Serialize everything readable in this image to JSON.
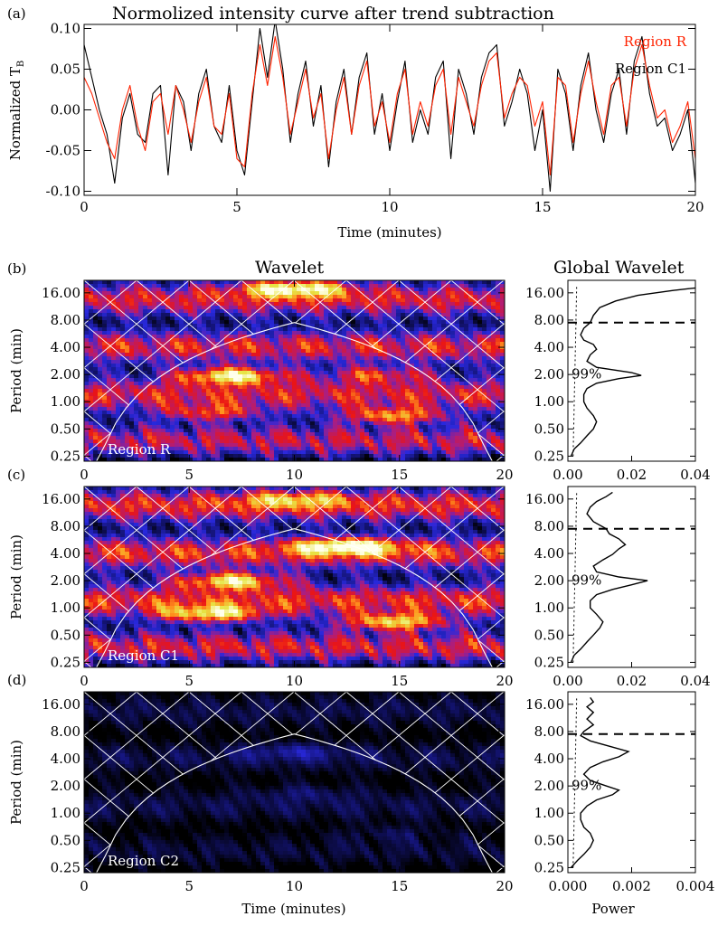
{
  "figure": {
    "panel_a_label": "(a)",
    "panel_b_label": "(b)",
    "panel_c_label": "(c)",
    "panel_d_label": "(d)",
    "panel_a_title": "Normolized intensity curve after trend subtraction",
    "wavelet_title": "Wavelet",
    "global_title": "Global Wavelet",
    "bottom_xlabel": "Time (minutes)",
    "global_xlabel": "Power",
    "sig_level": "99%"
  },
  "chart_data": [
    {
      "type": "line",
      "panel": "a",
      "title": "Normolized intensity curve after trend subtraction",
      "xlabel": "Time (minutes)",
      "ylabel": "Normalized T",
      "ylabel_sub": "B",
      "xlim": [
        0,
        20
      ],
      "ylim": [
        -0.105,
        0.105
      ],
      "xticks": [
        "0",
        "5",
        "10",
        "15",
        "20"
      ],
      "yticks": [
        "-0.10",
        "-0.05",
        "0.00",
        "0.05",
        "0.10"
      ],
      "legend_position": "top-right",
      "series": [
        {
          "name": "Region R",
          "color": "#ff2200",
          "x": [
            0.0,
            0.25,
            0.5,
            0.75,
            1.0,
            1.25,
            1.5,
            1.75,
            2.0,
            2.25,
            2.5,
            2.75,
            3.0,
            3.25,
            3.5,
            3.75,
            4.0,
            4.25,
            4.5,
            4.75,
            5.0,
            5.25,
            5.5,
            5.75,
            6.0,
            6.25,
            6.5,
            6.75,
            7.0,
            7.25,
            7.5,
            7.75,
            8.0,
            8.25,
            8.5,
            8.75,
            9.0,
            9.25,
            9.5,
            9.75,
            10.0,
            10.25,
            10.5,
            10.75,
            11.0,
            11.25,
            11.5,
            11.75,
            12.0,
            12.25,
            12.5,
            12.75,
            13.0,
            13.25,
            13.5,
            13.75,
            14.0,
            14.25,
            14.5,
            14.75,
            15.0,
            15.25,
            15.5,
            15.75,
            16.0,
            16.25,
            16.5,
            16.75,
            17.0,
            17.25,
            17.5,
            17.75,
            18.0,
            18.25,
            18.5,
            18.75,
            19.0,
            19.25,
            19.5,
            19.75,
            20.0
          ],
          "y": [
            0.04,
            0.02,
            -0.01,
            -0.04,
            -0.06,
            0.0,
            0.03,
            -0.02,
            -0.05,
            0.01,
            0.02,
            -0.03,
            0.03,
            0.0,
            -0.04,
            0.01,
            0.04,
            -0.02,
            -0.03,
            0.02,
            -0.06,
            -0.07,
            0.02,
            0.08,
            0.03,
            0.09,
            0.04,
            -0.03,
            0.01,
            0.05,
            -0.01,
            0.02,
            -0.06,
            0.0,
            0.04,
            -0.03,
            0.03,
            0.06,
            -0.02,
            0.01,
            -0.04,
            0.02,
            0.05,
            -0.03,
            0.01,
            -0.02,
            0.03,
            0.05,
            -0.03,
            0.04,
            0.01,
            -0.02,
            0.03,
            0.06,
            0.07,
            -0.01,
            0.02,
            0.04,
            0.03,
            -0.02,
            0.01,
            -0.08,
            0.04,
            0.03,
            -0.04,
            0.02,
            0.06,
            0.01,
            -0.03,
            0.03,
            0.04,
            -0.02,
            0.05,
            0.08,
            0.03,
            -0.01,
            0.0,
            -0.04,
            -0.02,
            0.01,
            -0.06
          ]
        },
        {
          "name": "Region C1",
          "color": "#000000",
          "x": [
            0.0,
            0.25,
            0.5,
            0.75,
            1.0,
            1.25,
            1.5,
            1.75,
            2.0,
            2.25,
            2.5,
            2.75,
            3.0,
            3.25,
            3.5,
            3.75,
            4.0,
            4.25,
            4.5,
            4.75,
            5.0,
            5.25,
            5.5,
            5.75,
            6.0,
            6.25,
            6.5,
            6.75,
            7.0,
            7.25,
            7.5,
            7.75,
            8.0,
            8.25,
            8.5,
            8.75,
            9.0,
            9.25,
            9.5,
            9.75,
            10.0,
            10.25,
            10.5,
            10.75,
            11.0,
            11.25,
            11.5,
            11.75,
            12.0,
            12.25,
            12.5,
            12.75,
            13.0,
            13.25,
            13.5,
            13.75,
            14.0,
            14.25,
            14.5,
            14.75,
            15.0,
            15.25,
            15.5,
            15.75,
            16.0,
            16.25,
            16.5,
            16.75,
            17.0,
            17.25,
            17.5,
            17.75,
            18.0,
            18.25,
            18.5,
            18.75,
            19.0,
            19.25,
            19.5,
            19.75,
            20.0
          ],
          "y": [
            0.08,
            0.04,
            0.0,
            -0.03,
            -0.09,
            -0.01,
            0.02,
            -0.03,
            -0.04,
            0.02,
            0.03,
            -0.08,
            0.03,
            0.01,
            -0.05,
            0.02,
            0.05,
            -0.02,
            -0.04,
            0.03,
            -0.05,
            -0.08,
            0.01,
            0.1,
            0.04,
            0.11,
            0.05,
            -0.04,
            0.02,
            0.06,
            -0.02,
            0.03,
            -0.07,
            0.01,
            0.05,
            -0.03,
            0.04,
            0.07,
            -0.03,
            0.02,
            -0.05,
            0.01,
            0.06,
            -0.04,
            0.0,
            -0.03,
            0.04,
            0.06,
            -0.06,
            0.05,
            0.02,
            -0.03,
            0.04,
            0.07,
            0.08,
            -0.02,
            0.01,
            0.05,
            0.02,
            -0.05,
            0.0,
            -0.1,
            0.05,
            0.02,
            -0.05,
            0.03,
            0.07,
            0.0,
            -0.04,
            0.02,
            0.05,
            -0.03,
            0.06,
            0.09,
            0.02,
            -0.02,
            -0.01,
            -0.05,
            -0.03,
            0.0,
            -0.09
          ]
        }
      ]
    },
    {
      "type": "heatmap",
      "panel": "b",
      "title": "Wavelet",
      "xlabel": "",
      "ylabel": "Period (min)",
      "xlim": [
        0,
        20
      ],
      "xticks": [
        "0",
        "5",
        "10",
        "15",
        "20"
      ],
      "yticks": [
        "16.00",
        "8.00",
        "4.00",
        "2.00",
        "1.00",
        "0.50",
        "0.25"
      ],
      "annotation": "Region R",
      "cone_peak_period": 7.5,
      "hot_spots": [
        {
          "t": 7.0,
          "period": 1.95,
          "strength": 1.0
        },
        {
          "t": 14.0,
          "period": 2.0,
          "strength": 0.55
        },
        {
          "t": 6.0,
          "period": 0.75,
          "strength": 0.55
        },
        {
          "t": 14.7,
          "period": 0.7,
          "strength": 0.75
        },
        {
          "t": 10.0,
          "period": 18.0,
          "strength": 0.9
        }
      ]
    },
    {
      "type": "line",
      "panel": "b",
      "title": "Global Wavelet",
      "xlabel": "",
      "ylabel": "",
      "xlim": [
        0,
        0.04
      ],
      "xticks": [
        "0.00",
        "0.02",
        "0.04"
      ],
      "yticks": [
        "16.00",
        "8.00",
        "4.00",
        "2.00",
        "1.00",
        "0.50",
        "0.25"
      ],
      "period": [
        0.25,
        0.3,
        0.35,
        0.42,
        0.5,
        0.6,
        0.7,
        0.85,
        1.0,
        1.2,
        1.4,
        1.6,
        1.8,
        1.95,
        2.1,
        2.4,
        2.8,
        3.3,
        3.8,
        4.3,
        4.8,
        5.5,
        6.5,
        7.5,
        9.0,
        11.0,
        13.0,
        15.0,
        17.0,
        19.0
      ],
      "power": [
        0.001,
        0.002,
        0.004,
        0.006,
        0.008,
        0.009,
        0.008,
        0.006,
        0.005,
        0.005,
        0.006,
        0.009,
        0.016,
        0.023,
        0.02,
        0.009,
        0.006,
        0.007,
        0.009,
        0.008,
        0.005,
        0.004,
        0.005,
        0.007,
        0.008,
        0.01,
        0.015,
        0.022,
        0.033,
        0.045
      ],
      "significance_label": "99%"
    },
    {
      "type": "heatmap",
      "panel": "c",
      "title": "",
      "xlabel": "",
      "ylabel": "Period (min)",
      "xlim": [
        0,
        20
      ],
      "xticks": [
        "0",
        "5",
        "10",
        "15",
        "20"
      ],
      "yticks": [
        "16.00",
        "8.00",
        "4.00",
        "2.00",
        "1.00",
        "0.50",
        "0.25"
      ],
      "annotation": "Region C1",
      "cone_peak_period": 7.5,
      "hot_spots": [
        {
          "t": 12.5,
          "period": 4.8,
          "strength": 0.85
        },
        {
          "t": 7.0,
          "period": 2.0,
          "strength": 0.95
        },
        {
          "t": 6.0,
          "period": 0.85,
          "strength": 0.8
        },
        {
          "t": 14.8,
          "period": 0.7,
          "strength": 0.9
        },
        {
          "t": 10.0,
          "period": 16.0,
          "strength": 0.5
        }
      ]
    },
    {
      "type": "line",
      "panel": "c",
      "title": "",
      "xlabel": "",
      "ylabel": "",
      "xlim": [
        0,
        0.04
      ],
      "xticks": [
        "0.00",
        "0.02",
        "0.04"
      ],
      "yticks": [
        "16.00",
        "8.00",
        "4.00",
        "2.00",
        "1.00",
        "0.50",
        "0.25"
      ],
      "period": [
        0.25,
        0.3,
        0.35,
        0.42,
        0.5,
        0.6,
        0.7,
        0.85,
        1.0,
        1.2,
        1.4,
        1.6,
        1.8,
        2.0,
        2.2,
        2.5,
        2.9,
        3.4,
        3.9,
        4.5,
        5.0,
        5.8,
        6.6,
        7.5,
        9.0,
        11.0,
        13.0,
        15.0,
        17.0,
        19.0
      ],
      "power": [
        0.001,
        0.002,
        0.004,
        0.006,
        0.008,
        0.01,
        0.011,
        0.009,
        0.007,
        0.007,
        0.009,
        0.014,
        0.02,
        0.025,
        0.016,
        0.009,
        0.008,
        0.011,
        0.014,
        0.016,
        0.018,
        0.016,
        0.013,
        0.012,
        0.008,
        0.006,
        0.007,
        0.009,
        0.012,
        0.014
      ],
      "significance_label": "99%"
    },
    {
      "type": "heatmap",
      "panel": "d",
      "title": "",
      "xlabel": "Time (minutes)",
      "ylabel": "Period (min)",
      "xlim": [
        0,
        20
      ],
      "xticks": [
        "0",
        "5",
        "10",
        "15",
        "20"
      ],
      "yticks": [
        "16.00",
        "8.00",
        "4.00",
        "2.00",
        "1.00",
        "0.50",
        "0.25"
      ],
      "annotation": "Region C2",
      "cone_peak_period": 7.5,
      "hot_spots": [
        {
          "t": 10.0,
          "period": 4.8,
          "strength": 0.45
        },
        {
          "t": 10.5,
          "period": 1.7,
          "strength": 0.3
        },
        {
          "t": 14.7,
          "period": 0.6,
          "strength": 0.3
        }
      ]
    },
    {
      "type": "line",
      "panel": "d",
      "title": "",
      "xlabel": "Power",
      "ylabel": "",
      "xlim": [
        0,
        0.004
      ],
      "xticks": [
        "0.000",
        "0.002",
        "0.004"
      ],
      "yticks": [
        "16.00",
        "8.00",
        "4.00",
        "2.00",
        "1.00",
        "0.50",
        "0.25"
      ],
      "period": [
        0.25,
        0.3,
        0.35,
        0.42,
        0.5,
        0.6,
        0.7,
        0.85,
        1.0,
        1.2,
        1.4,
        1.6,
        1.8,
        2.0,
        2.3,
        2.7,
        3.2,
        3.7,
        4.2,
        4.8,
        5.5,
        6.3,
        7.2,
        8.0,
        9.5,
        11.0,
        13.0,
        15.0,
        17.0,
        19.0
      ],
      "power": [
        0.0001,
        0.0003,
        0.0005,
        0.0007,
        0.0008,
        0.0007,
        0.0005,
        0.0004,
        0.0004,
        0.0006,
        0.0009,
        0.0014,
        0.0016,
        0.0012,
        0.0007,
        0.0005,
        0.0007,
        0.0011,
        0.0016,
        0.0019,
        0.0013,
        0.0007,
        0.0004,
        0.0005,
        0.0008,
        0.0006,
        0.0008,
        0.0006,
        0.0008,
        0.0007
      ],
      "significance_label": "99%"
    }
  ]
}
